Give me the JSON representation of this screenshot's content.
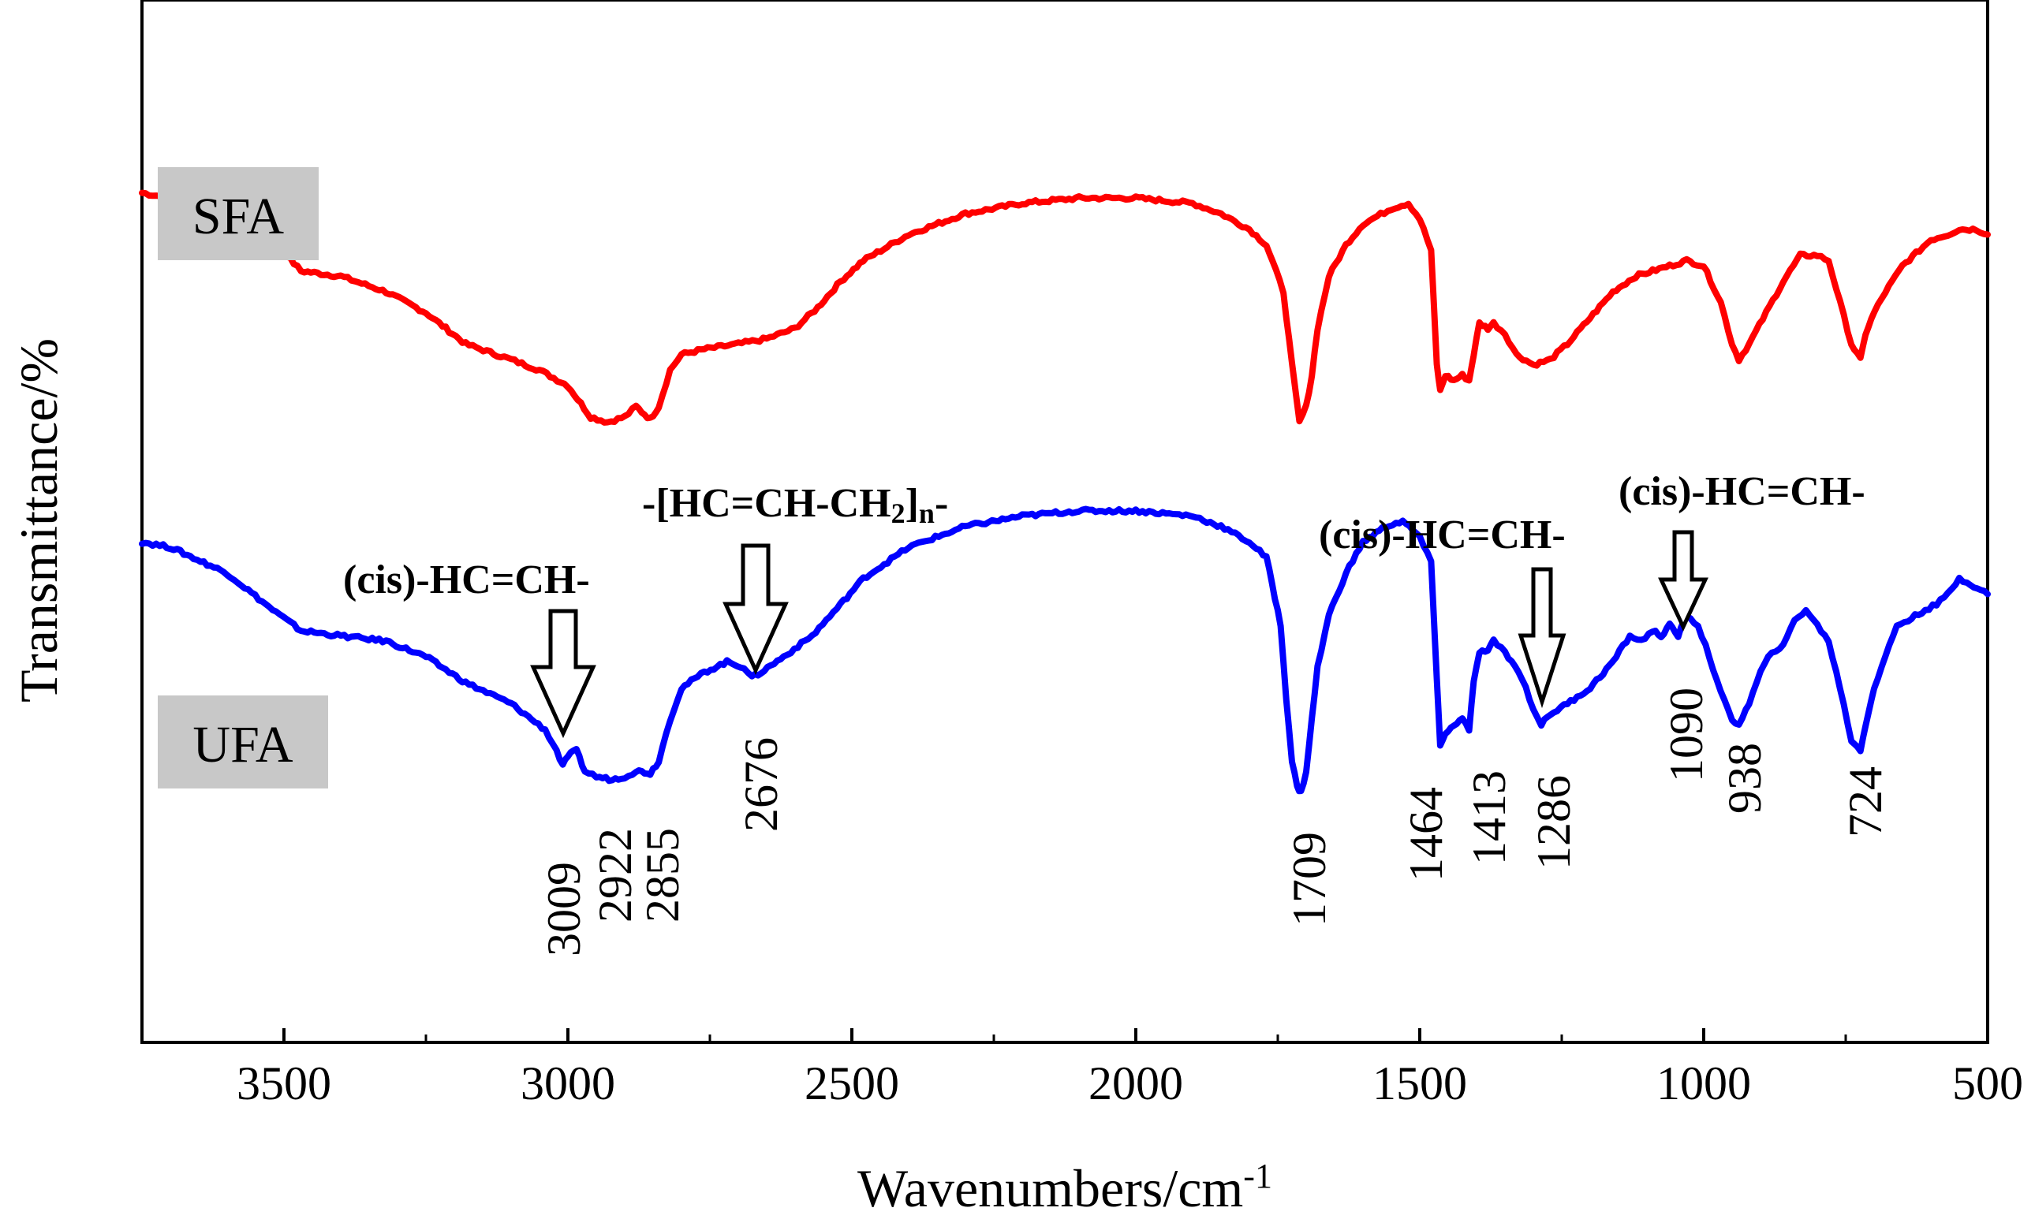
{
  "chart_data": {
    "type": "line",
    "title": "",
    "xlabel": "Wavenumbers/cm",
    "xlabel_superscript": "-1",
    "ylabel": "Transmittance/%",
    "xlim": [
      3750,
      500
    ],
    "x_reversed": true,
    "ylim": [
      0,
      100
    ],
    "ytick_labels_shown": false,
    "x_ticks": [
      3500,
      3000,
      2500,
      2000,
      1500,
      1000,
      500
    ],
    "grid": false,
    "series": [
      {
        "name": "SFA",
        "color": "#ff0000",
        "points": [
          [
            3750,
            81.5
          ],
          [
            3700,
            81.0
          ],
          [
            3600,
            79.5
          ],
          [
            3520,
            77.0
          ],
          [
            3470,
            74.0
          ],
          [
            3400,
            73.5
          ],
          [
            3320,
            72.0
          ],
          [
            3250,
            70.0
          ],
          [
            3180,
            67.0
          ],
          [
            3100,
            65.5
          ],
          [
            3050,
            64.5
          ],
          [
            3000,
            63.0
          ],
          [
            2960,
            60.0
          ],
          [
            2930,
            59.5
          ],
          [
            2900,
            60.0
          ],
          [
            2880,
            61.0
          ],
          [
            2870,
            60.5
          ],
          [
            2855,
            59.8
          ],
          [
            2840,
            61.0
          ],
          [
            2820,
            64.5
          ],
          [
            2800,
            66.0
          ],
          [
            2760,
            66.5
          ],
          [
            2700,
            67.0
          ],
          [
            2650,
            67.5
          ],
          [
            2600,
            68.5
          ],
          [
            2560,
            70.5
          ],
          [
            2520,
            73.0
          ],
          [
            2480,
            75.0
          ],
          [
            2400,
            77.5
          ],
          [
            2300,
            79.5
          ],
          [
            2200,
            80.5
          ],
          [
            2100,
            81.0
          ],
          [
            2000,
            81.0
          ],
          [
            1900,
            80.5
          ],
          [
            1850,
            79.5
          ],
          [
            1800,
            78.0
          ],
          [
            1770,
            76.5
          ],
          [
            1760,
            75.0
          ],
          [
            1740,
            72.0
          ],
          [
            1725,
            65.0
          ],
          [
            1712,
            59.5
          ],
          [
            1700,
            61.0
          ],
          [
            1690,
            64.0
          ],
          [
            1680,
            68.5
          ],
          [
            1660,
            73.5
          ],
          [
            1630,
            76.5
          ],
          [
            1600,
            78.5
          ],
          [
            1550,
            80.0
          ],
          [
            1520,
            80.5
          ],
          [
            1500,
            79.0
          ],
          [
            1480,
            76.0
          ],
          [
            1470,
            65.0
          ],
          [
            1464,
            62.5
          ],
          [
            1455,
            64.0
          ],
          [
            1440,
            63.5
          ],
          [
            1425,
            64.0
          ],
          [
            1413,
            63.5
          ],
          [
            1405,
            66.0
          ],
          [
            1395,
            69.0
          ],
          [
            1380,
            68.5
          ],
          [
            1370,
            69.0
          ],
          [
            1350,
            68.0
          ],
          [
            1330,
            66.0
          ],
          [
            1300,
            65.0
          ],
          [
            1270,
            65.5
          ],
          [
            1240,
            67.0
          ],
          [
            1200,
            69.5
          ],
          [
            1160,
            72.0
          ],
          [
            1120,
            73.5
          ],
          [
            1090,
            74.0
          ],
          [
            1060,
            74.5
          ],
          [
            1030,
            75.0
          ],
          [
            1000,
            74.5
          ],
          [
            970,
            71.0
          ],
          [
            950,
            67.0
          ],
          [
            938,
            65.5
          ],
          [
            920,
            67.0
          ],
          [
            890,
            70.0
          ],
          [
            860,
            73.0
          ],
          [
            830,
            75.5
          ],
          [
            800,
            75.5
          ],
          [
            780,
            75.0
          ],
          [
            760,
            71.0
          ],
          [
            740,
            67.0
          ],
          [
            724,
            65.5
          ],
          [
            715,
            68.0
          ],
          [
            700,
            70.0
          ],
          [
            680,
            72.0
          ],
          [
            650,
            74.5
          ],
          [
            620,
            76.0
          ],
          [
            600,
            77.0
          ],
          [
            570,
            77.5
          ],
          [
            550,
            78.0
          ],
          [
            520,
            78.0
          ],
          [
            500,
            77.5
          ]
        ]
      },
      {
        "name": "UFA",
        "color": "#0000ff",
        "points": [
          [
            3750,
            48.0
          ],
          [
            3700,
            47.5
          ],
          [
            3600,
            45.0
          ],
          [
            3520,
            41.5
          ],
          [
            3470,
            39.5
          ],
          [
            3400,
            39.0
          ],
          [
            3320,
            38.5
          ],
          [
            3250,
            37.0
          ],
          [
            3180,
            34.5
          ],
          [
            3100,
            32.5
          ],
          [
            3040,
            30.0
          ],
          [
            3020,
            28.0
          ],
          [
            3009,
            26.5
          ],
          [
            3000,
            27.5
          ],
          [
            2985,
            28.0
          ],
          [
            2970,
            26.0
          ],
          [
            2950,
            25.5
          ],
          [
            2922,
            25.2
          ],
          [
            2900,
            25.5
          ],
          [
            2880,
            26.0
          ],
          [
            2870,
            26.0
          ],
          [
            2855,
            25.8
          ],
          [
            2840,
            27.0
          ],
          [
            2820,
            31.0
          ],
          [
            2800,
            34.0
          ],
          [
            2760,
            35.5
          ],
          [
            2720,
            36.5
          ],
          [
            2690,
            36.0
          ],
          [
            2676,
            35.0
          ],
          [
            2660,
            35.5
          ],
          [
            2620,
            37.0
          ],
          [
            2570,
            39.0
          ],
          [
            2520,
            42.0
          ],
          [
            2480,
            44.5
          ],
          [
            2400,
            47.5
          ],
          [
            2300,
            49.5
          ],
          [
            2200,
            50.5
          ],
          [
            2100,
            51.0
          ],
          [
            2000,
            51.0
          ],
          [
            1900,
            50.5
          ],
          [
            1850,
            49.5
          ],
          [
            1800,
            48.0
          ],
          [
            1770,
            46.5
          ],
          [
            1760,
            44.0
          ],
          [
            1745,
            40.0
          ],
          [
            1735,
            33.0
          ],
          [
            1725,
            27.0
          ],
          [
            1716,
            24.5
          ],
          [
            1709,
            24.0
          ],
          [
            1700,
            26.0
          ],
          [
            1690,
            31.0
          ],
          [
            1680,
            36.0
          ],
          [
            1660,
            41.0
          ],
          [
            1630,
            45.0
          ],
          [
            1600,
            48.0
          ],
          [
            1560,
            49.5
          ],
          [
            1530,
            50.0
          ],
          [
            1500,
            48.5
          ],
          [
            1480,
            46.0
          ],
          [
            1470,
            35.0
          ],
          [
            1464,
            28.5
          ],
          [
            1455,
            29.5
          ],
          [
            1440,
            30.5
          ],
          [
            1425,
            31.0
          ],
          [
            1413,
            30.0
          ],
          [
            1405,
            34.5
          ],
          [
            1395,
            37.5
          ],
          [
            1380,
            37.5
          ],
          [
            1370,
            38.5
          ],
          [
            1350,
            37.5
          ],
          [
            1320,
            35.0
          ],
          [
            1300,
            32.0
          ],
          [
            1286,
            30.5
          ],
          [
            1270,
            31.5
          ],
          [
            1240,
            32.5
          ],
          [
            1200,
            34.0
          ],
          [
            1160,
            36.5
          ],
          [
            1130,
            39.0
          ],
          [
            1110,
            38.5
          ],
          [
            1090,
            39.5
          ],
          [
            1075,
            39.0
          ],
          [
            1060,
            40.0
          ],
          [
            1045,
            39.0
          ],
          [
            1030,
            41.0
          ],
          [
            1010,
            40.0
          ],
          [
            990,
            37.0
          ],
          [
            970,
            33.5
          ],
          [
            950,
            31.0
          ],
          [
            938,
            30.5
          ],
          [
            920,
            32.5
          ],
          [
            900,
            35.5
          ],
          [
            880,
            37.5
          ],
          [
            860,
            38.0
          ],
          [
            840,
            40.5
          ],
          [
            820,
            41.5
          ],
          [
            800,
            40.0
          ],
          [
            780,
            38.5
          ],
          [
            760,
            34.0
          ],
          [
            740,
            29.0
          ],
          [
            724,
            28.0
          ],
          [
            715,
            30.5
          ],
          [
            700,
            34.0
          ],
          [
            680,
            37.0
          ],
          [
            660,
            40.0
          ],
          [
            640,
            40.5
          ],
          [
            610,
            41.5
          ],
          [
            590,
            42.0
          ],
          [
            570,
            43.0
          ],
          [
            550,
            44.5
          ],
          [
            530,
            44.0
          ],
          [
            500,
            43.0
          ]
        ]
      }
    ],
    "sample_tags": [
      "SFA",
      "UFA"
    ],
    "peak_labels": [
      "3009",
      "2922",
      "2855",
      "2676",
      "1709",
      "1464",
      "1413",
      "1286",
      "1090",
      "938",
      "724"
    ],
    "annotations": [
      {
        "text": "(cis)-HC=CH-"
      },
      {
        "text_parts": [
          "-[HC=CH-CH",
          "2",
          "]",
          "n",
          "-"
        ]
      },
      {
        "text": "(cis)-HC=CH-"
      },
      {
        "text": "(cis)-HC=CH-"
      }
    ],
    "colors": {
      "sfa": "#ff0000",
      "ufa": "#0000ff",
      "tag_bg": "#c8c8c8",
      "axis": "#000000"
    }
  }
}
